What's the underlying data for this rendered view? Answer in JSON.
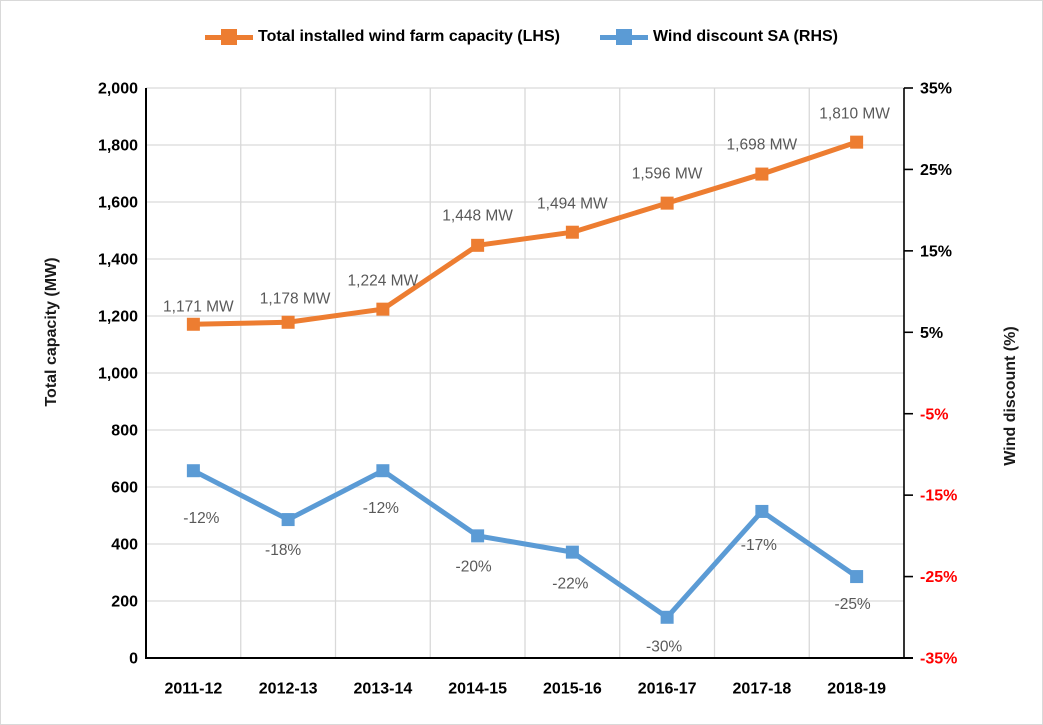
{
  "legend": {
    "items": [
      {
        "label": "Total installed wind farm capacity (LHS)",
        "color": "#ED7D31"
      },
      {
        "label": "Wind discount SA (RHS)",
        "color": "#5B9BD5"
      }
    ]
  },
  "chart_data": {
    "type": "line",
    "title": "",
    "categories": [
      "2011-12",
      "2012-13",
      "2013-14",
      "2014-15",
      "2015-16",
      "2016-17",
      "2017-18",
      "2018-19"
    ],
    "series": [
      {
        "name": "Total installed wind farm capacity (LHS)",
        "axis": "left",
        "color": "#ED7D31",
        "marker": "square",
        "values": [
          1171,
          1178,
          1224,
          1448,
          1494,
          1596,
          1698,
          1810
        ],
        "data_labels": [
          "1,171 MW",
          "1,178 MW",
          "1,224 MW",
          "1,448 MW",
          "1,494 MW",
          "1,596 MW",
          "1,698 MW",
          "1,810 MW"
        ],
        "label_position": "above"
      },
      {
        "name": "Wind discount SA (RHS)",
        "axis": "right",
        "color": "#5B9BD5",
        "marker": "square",
        "values": [
          -12,
          -18,
          -12,
          -20,
          -22,
          -30,
          -17,
          -25
        ],
        "data_labels": [
          "-12%",
          "-18%",
          "-12%",
          "-20%",
          "-22%",
          "-30%",
          "-17%",
          "-25%"
        ],
        "label_position": "below"
      }
    ],
    "left_axis": {
      "title": "Total capacity (MW)",
      "min": 0,
      "max": 2000,
      "step": 200,
      "tick_labels": [
        "2,000",
        "1,800",
        "1,600",
        "1,400",
        "1,200",
        "1,000",
        "800",
        "600",
        "400",
        "200",
        "0"
      ],
      "tick_color": "#000000"
    },
    "right_axis": {
      "title": "Wind discount (%)",
      "min": -35,
      "max": 35,
      "step": 10,
      "tick_labels": [
        "35%",
        "25%",
        "15%",
        "5%",
        "-5%",
        "-15%",
        "-25%",
        "-35%"
      ],
      "positive_tick_color": "#000000",
      "negative_tick_color": "#FF0000"
    },
    "legend_position": "top",
    "grid": true,
    "colors": {
      "gridline": "#D9D9D9",
      "axis_line": "#000000",
      "data_label": "#595959",
      "background": "#FFFFFF",
      "page_border": "#D9D9D9"
    }
  }
}
